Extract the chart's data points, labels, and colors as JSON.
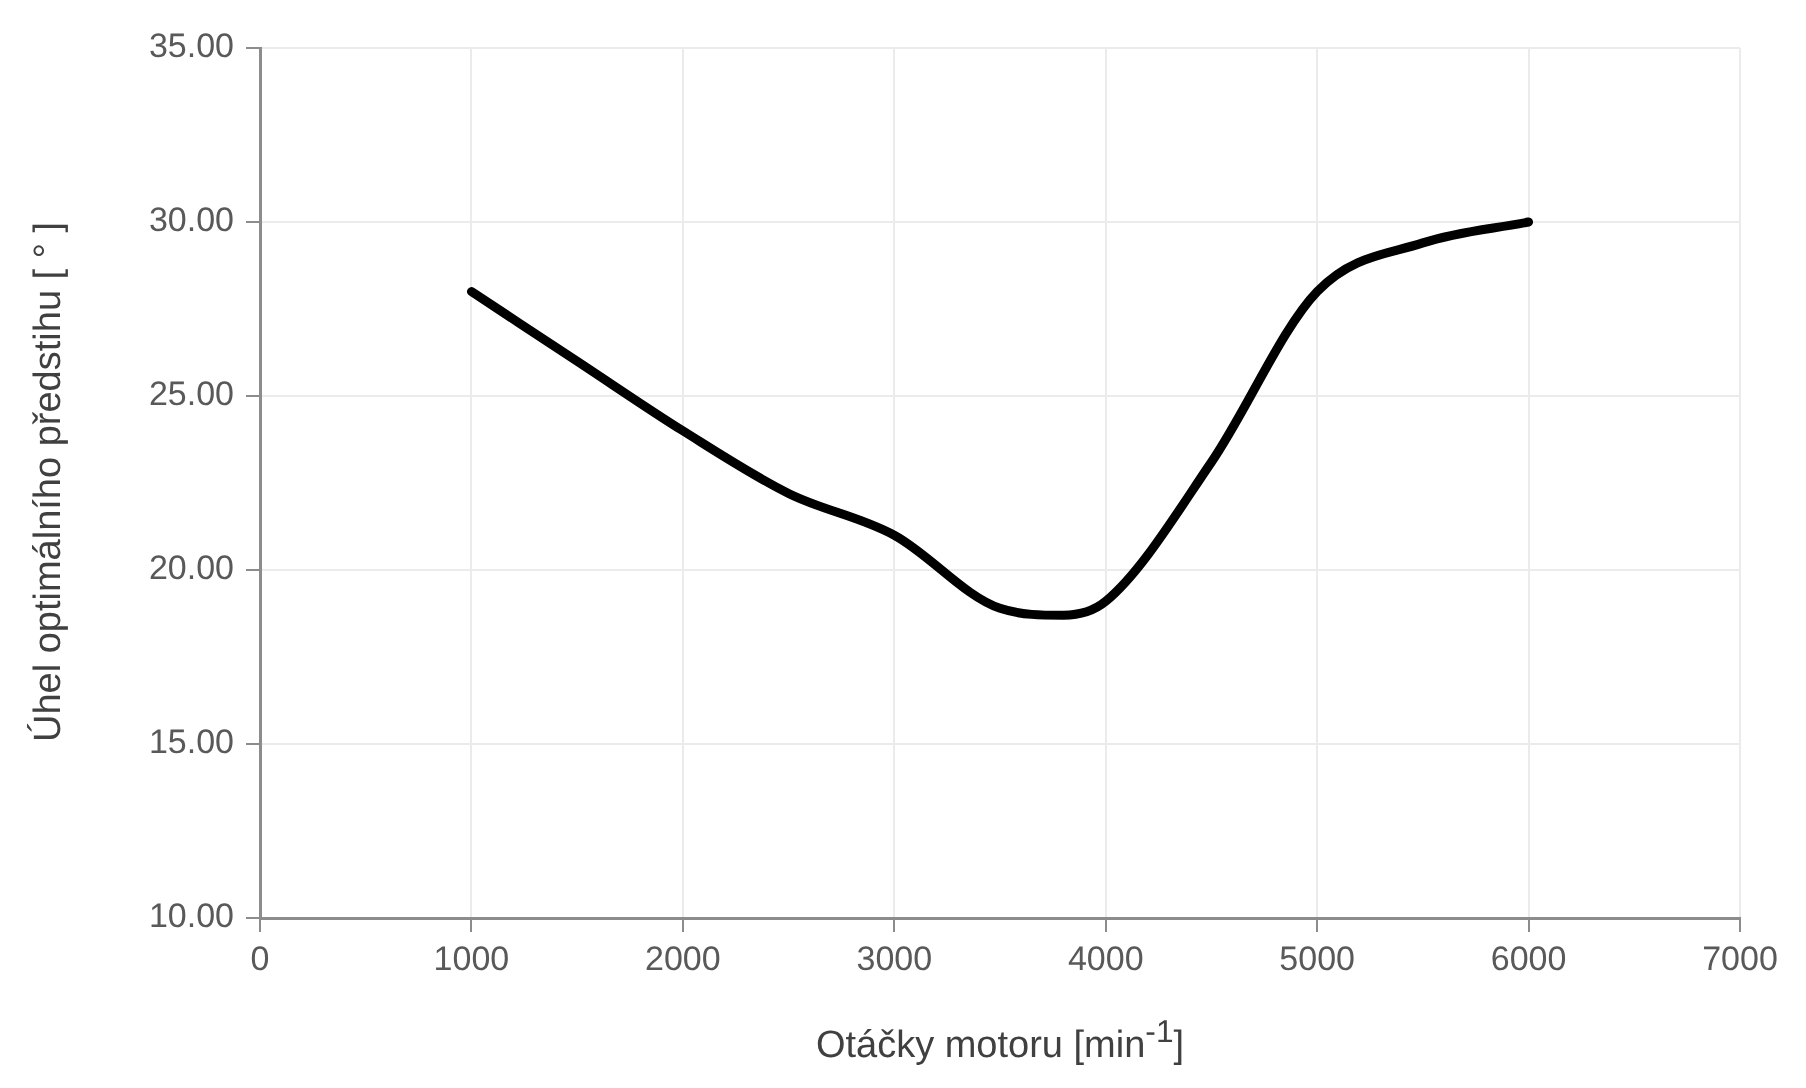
{
  "chart_data": {
    "type": "line",
    "xlabel": "Otáčky motoru [min$^{-1}$]",
    "ylabel": "Úhel optimálního předstihu [ ° ]",
    "x": [
      1000,
      1500,
      2000,
      2500,
      3000,
      3500,
      3800,
      4000,
      4500,
      5000,
      5500,
      6000
    ],
    "series": [
      {
        "color": "#000000",
        "values": [
          28.0,
          26.0,
          24.0,
          22.2,
          21.0,
          18.9,
          18.7,
          19.1,
          23.1,
          28.0,
          29.4,
          30.0
        ]
      }
    ],
    "xlim": [
      0,
      7000
    ],
    "xticks": [
      0,
      1000,
      2000,
      3000,
      4000,
      5000,
      6000,
      7000
    ],
    "ylim": [
      10,
      35
    ],
    "yticks": [
      {
        "value": 10,
        "label": "10.00"
      },
      {
        "value": 15,
        "label": "15.00"
      },
      {
        "value": 20,
        "label": "20.00"
      },
      {
        "value": 25,
        "label": "25.00"
      },
      {
        "value": 30,
        "label": "30.00"
      },
      {
        "value": 35,
        "label": "35.00"
      }
    ],
    "grid": true,
    "legend": false,
    "marker": "none",
    "line_style": "solid"
  }
}
